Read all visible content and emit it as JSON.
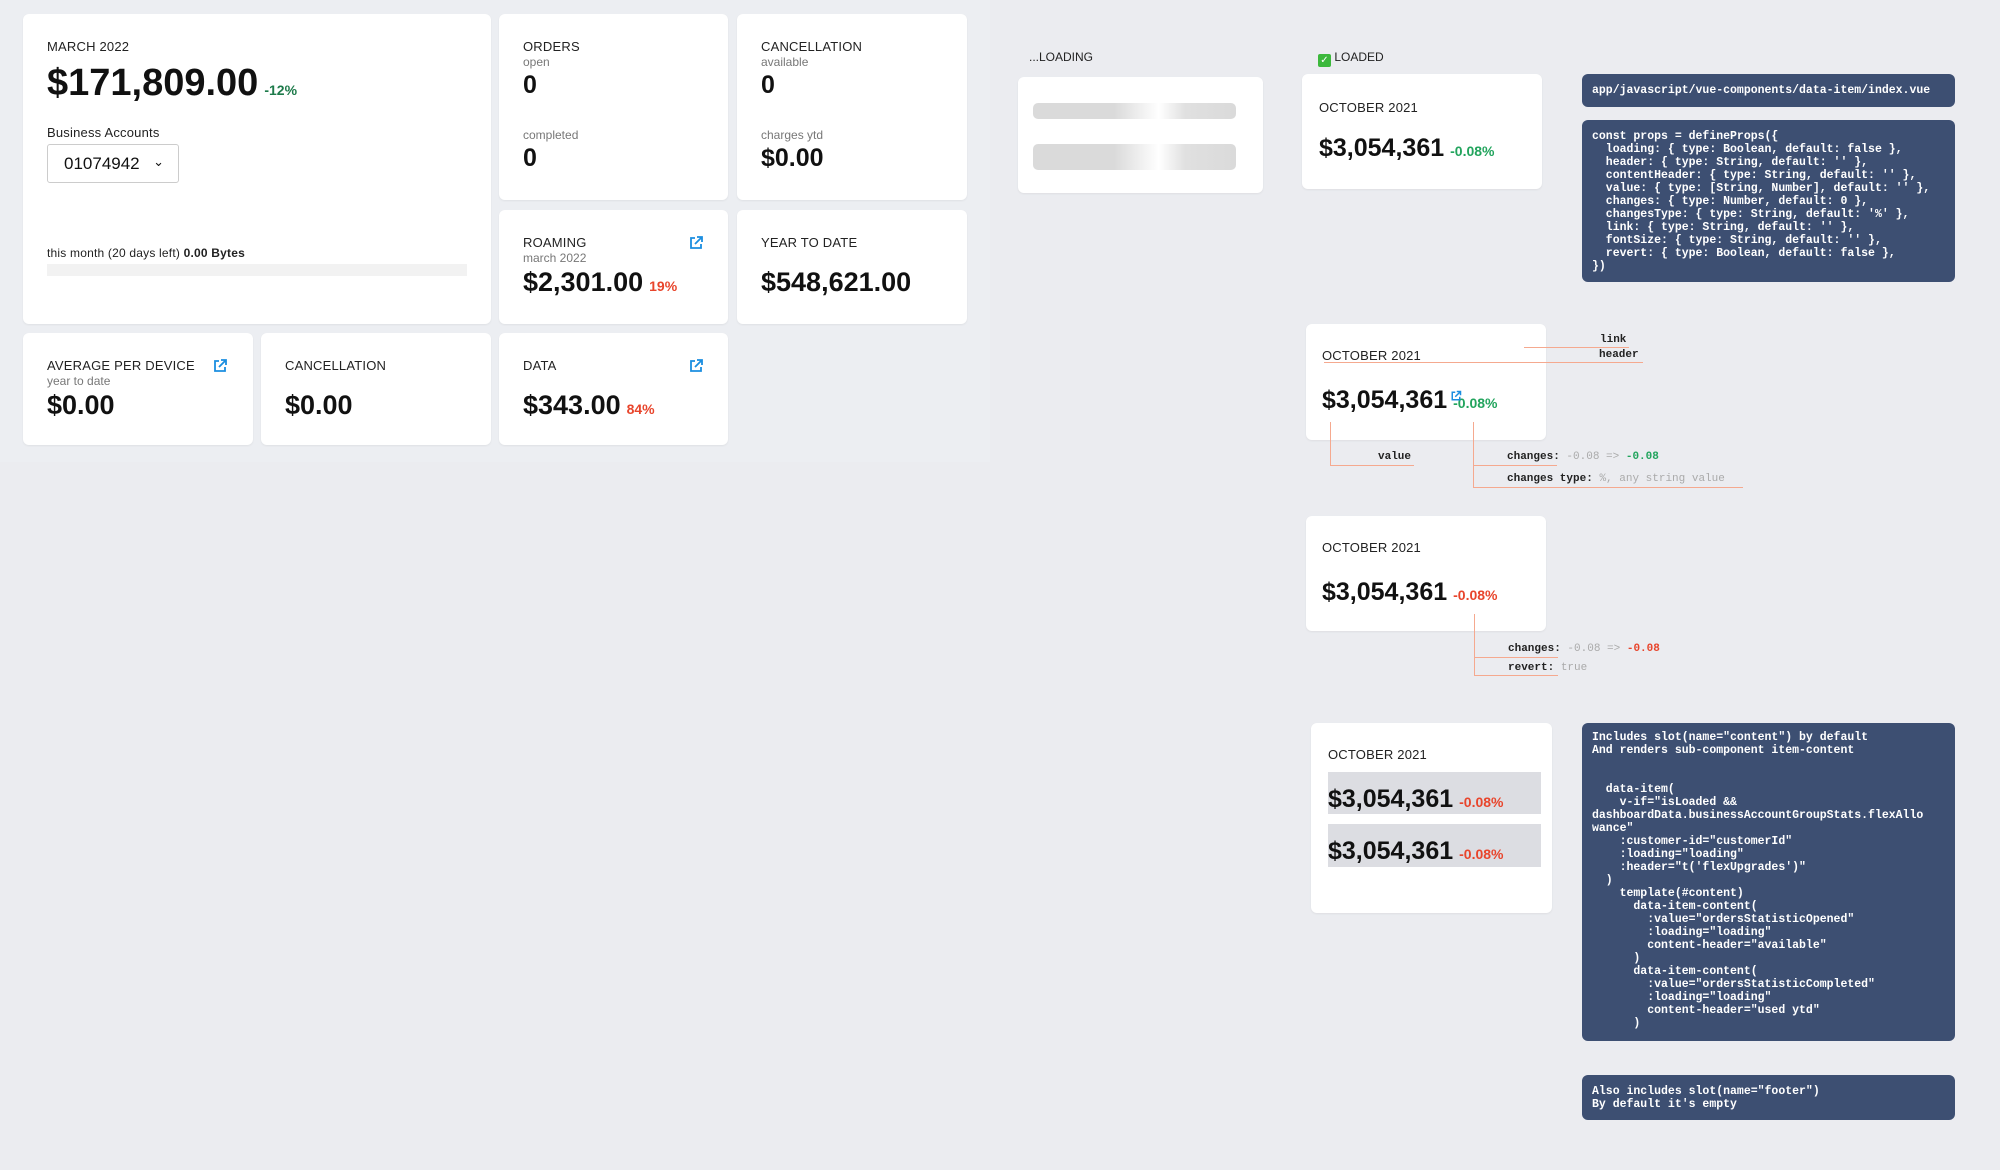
{
  "dashboard": {
    "main": {
      "header": "MARCH 2022",
      "value": "$171,809.00",
      "change": "-12%",
      "accounts_label": "Business Accounts",
      "account_select": "01074942",
      "usage_text": "this month (20 days left)",
      "usage_value": "0.00 Bytes",
      "usage_progress": 0
    },
    "orders": {
      "header": "ORDERS",
      "open_label": "open",
      "open_value": "0",
      "completed_label": "completed",
      "completed_value": "0"
    },
    "cancellation": {
      "header": "CANCELLATION",
      "available_label": "available",
      "available_value": "0",
      "charges_label": "charges ytd",
      "charges_value": "$0.00"
    },
    "roaming": {
      "header": "ROAMING",
      "sub": "march 2022",
      "value": "$2,301.00",
      "change": "19%"
    },
    "ytd": {
      "header": "YEAR TO DATE",
      "value": "$548,621.00"
    },
    "avg": {
      "header": "AVERAGE PER DEVICE",
      "sub": "year to date",
      "value": "$0.00"
    },
    "cancellation2": {
      "header": "CANCELLATION",
      "value": "$0.00"
    },
    "data": {
      "header": "DATA",
      "value": "$343.00",
      "change": "84%"
    }
  },
  "states": {
    "loading_label": "...LOADING",
    "loaded_label": "LOADED",
    "loaded_icon": "check-mark-emoji"
  },
  "example": {
    "header": "OCTOBER 2021",
    "value": "$3,054,361",
    "change": "-0.08%"
  },
  "annotations": {
    "link": "link",
    "header": "header",
    "value": "value",
    "changes_key": "changes:",
    "changes_from": "-0.08 =>",
    "changes_to": "-0.08",
    "changes_type_key": "changes type:",
    "changes_type_val": "%, any string value",
    "revert_key": "revert:",
    "revert_val": "true"
  },
  "code": {
    "path": "app/javascript/vue-components/data-item/index.vue",
    "props": "const props = defineProps({\n  loading: { type: Boolean, default: false },\n  header: { type: String, default: '' },\n  contentHeader: { type: String, default: '' },\n  value: { type: [String, Number], default: '' },\n  changes: { type: Number, default: 0 },\n  changesType: { type: String, default: '%' },\n  link: { type: String, default: '' },\n  fontSize: { type: String, default: '' },\n  revert: { type: Boolean, default: false },\n})",
    "slot": "Includes slot(name=\"content\") by default\nAnd renders sub-component item-content\n\n\n  data-item(\n    v-if=\"isLoaded &&\ndashboardData.businessAccountGroupStats.flexAllo\nwance\"\n    :customer-id=\"customerId\"\n    :loading=\"loading\"\n    :header=\"t('flexUpgrades')\"\n  )\n    template(#content)\n      data-item-content(\n        :value=\"ordersStatisticOpened\"\n        :loading=\"loading\"\n        content-header=\"available\"\n      )\n      data-item-content(\n        :value=\"ordersStatisticCompleted\"\n        :loading=\"loading\"\n        content-header=\"used ytd\"\n      )",
    "footer": "Also includes slot(name=\"footer\")\nBy default it's empty"
  },
  "colors": {
    "positive": "#22a45d",
    "negative": "#e8452c",
    "link": "#1b8ee0",
    "code_bg": "#3d4f72",
    "annotation_line": "#f5a98f"
  }
}
